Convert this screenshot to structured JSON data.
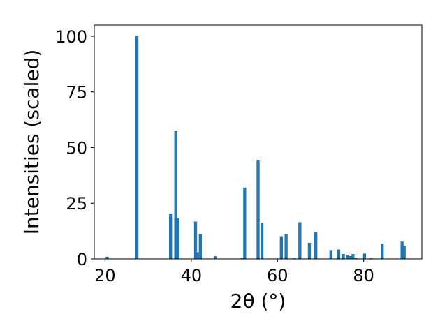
{
  "chart_data": {
    "type": "bar",
    "xlabel": "2θ (°)",
    "ylabel": "Intensities (scaled)",
    "xlim": [
      17.5,
      93.5
    ],
    "ylim": [
      0,
      105
    ],
    "xticks": [
      20,
      40,
      60,
      80
    ],
    "yticks": [
      0,
      25,
      50,
      75,
      100
    ],
    "grid": false,
    "bar_width": 0.7,
    "color": "#1f77b4",
    "series": [
      {
        "x": [
          20.5,
          27.4,
          35.2,
          36.4,
          36.9,
          41.0,
          41.4,
          42.1,
          45.6,
          51.8,
          52.4,
          55.5,
          56.4,
          60.9,
          62.0,
          63.9,
          65.2,
          67.4,
          68.9,
          72.4,
          74.2,
          75.3,
          76.2,
          76.9,
          77.5,
          78.2,
          80.2,
          81.6,
          84.3,
          88.9,
          89.4
        ],
        "y": [
          1.0,
          100.0,
          20.4,
          57.6,
          18.4,
          16.8,
          3.0,
          11.0,
          1.2,
          0.4,
          32.0,
          44.5,
          16.3,
          10.2,
          11.0,
          0.3,
          16.5,
          7.2,
          11.9,
          4.0,
          4.2,
          2.2,
          1.6,
          1.3,
          2.2,
          0.4,
          2.4,
          0.3,
          6.9,
          7.8,
          6.0
        ]
      }
    ]
  }
}
